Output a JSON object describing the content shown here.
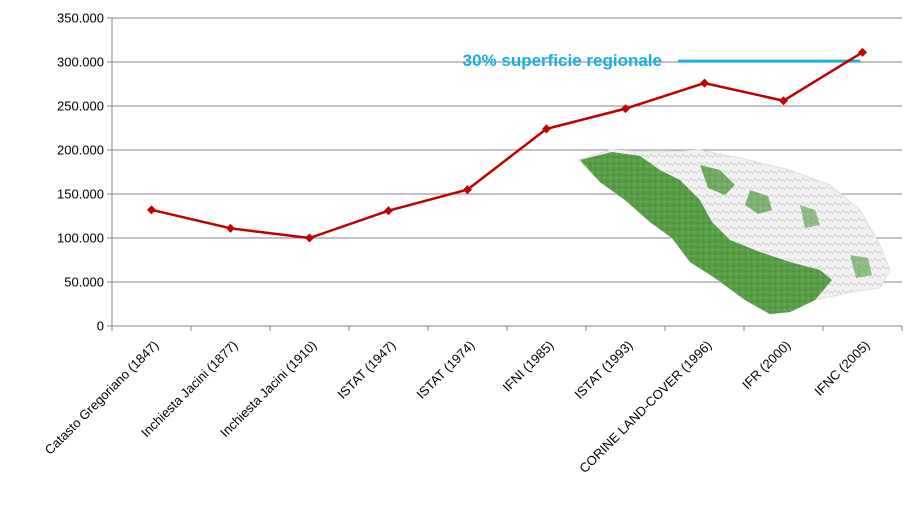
{
  "chart_data": {
    "type": "line",
    "categories": [
      "Catasto Gregoriano (1847)",
      "Inchiesta Jacini (1877)",
      "Inchiesta Jacini (1910)",
      "ISTAT (1947)",
      "ISTAT (1974)",
      "IFNI (1985)",
      "ISTAT (1993)",
      "CORINE LAND-COVER (1996)",
      "IFR (2000)",
      "IFNC (2005)"
    ],
    "series": [
      {
        "values": [
          132000,
          111000,
          100000,
          131000,
          155000,
          224000,
          247000,
          276000,
          256000,
          311000
        ]
      }
    ],
    "ylim": [
      0,
      350000
    ],
    "y_ticks": [
      0,
      50000,
      100000,
      150000,
      200000,
      250000,
      300000,
      350000
    ],
    "y_tick_labels": [
      "0",
      "50.000",
      "100.000",
      "150.000",
      "200.000",
      "250.000",
      "300.000",
      "350.000"
    ],
    "grid": "horizontal",
    "line_color": "#c00000",
    "marker": "diamond",
    "annotation": {
      "text": "30% superficie regionale",
      "y_value": 301000,
      "color": "#1aaee5"
    },
    "inset_image": "regional-forest-map"
  }
}
